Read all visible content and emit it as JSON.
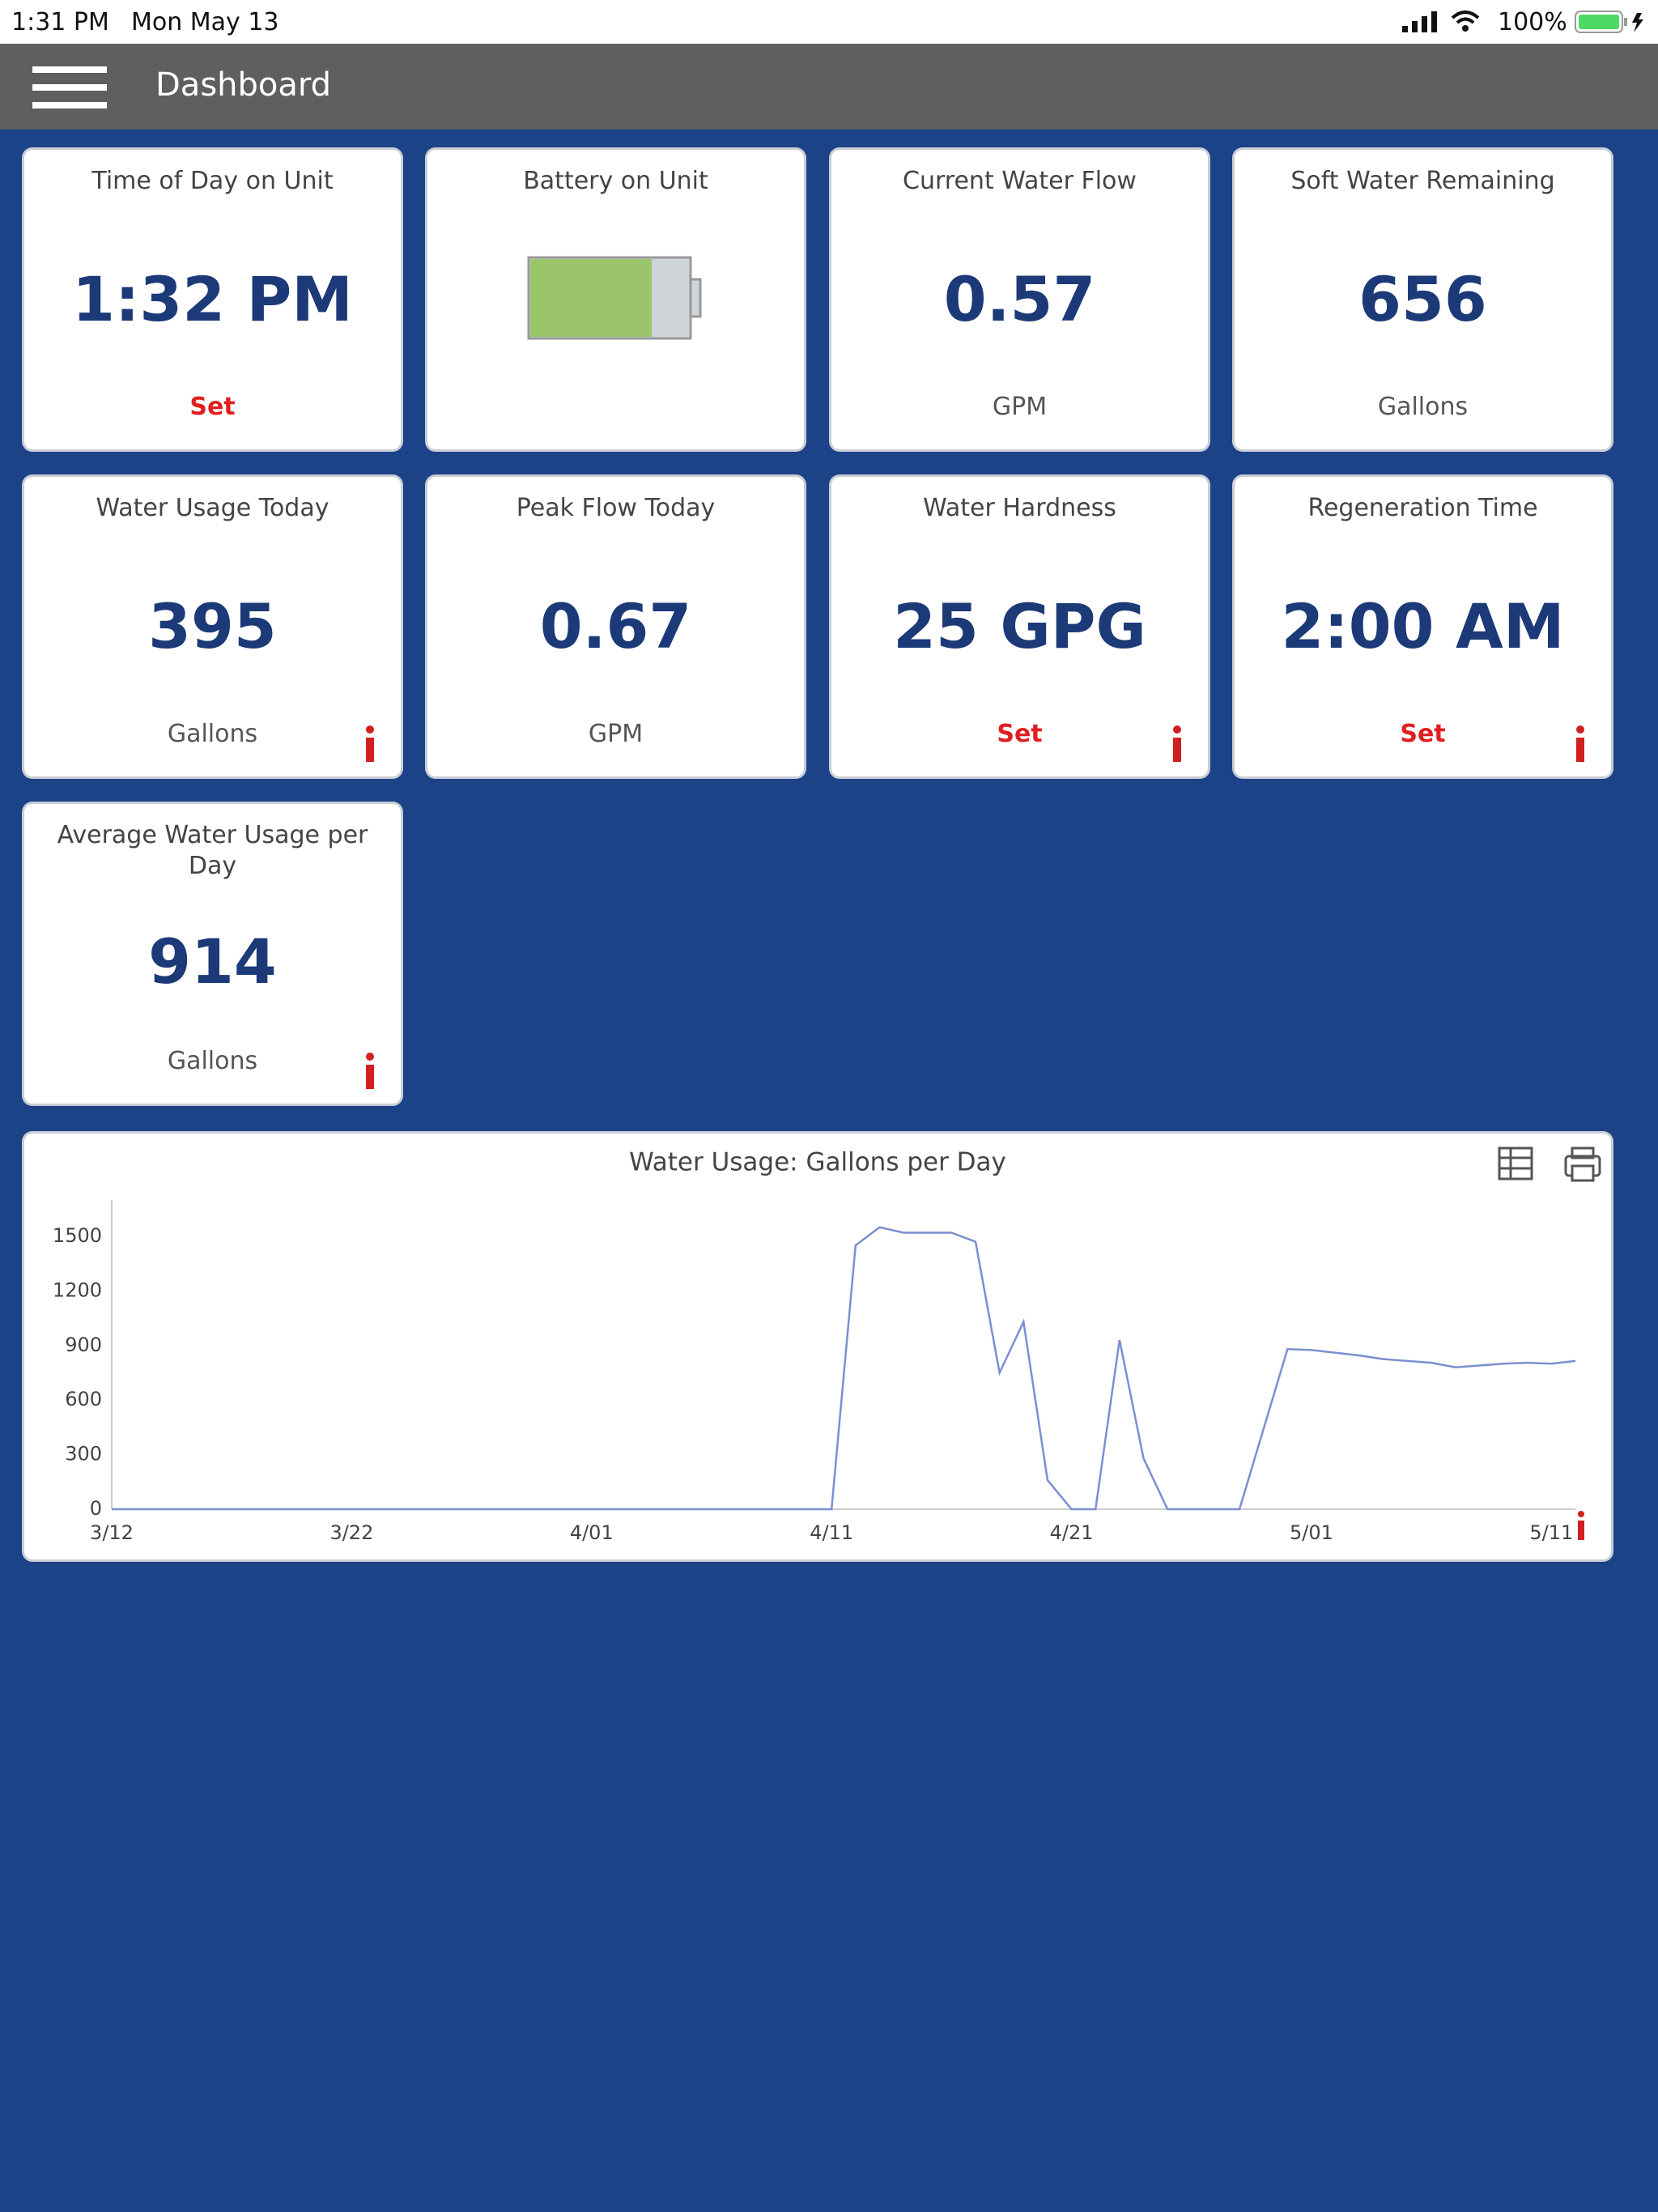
{
  "status_bar": {
    "time": "1:31 PM",
    "date": "Mon May 13",
    "battery": "100%"
  },
  "header": {
    "title": "Dashboard"
  },
  "cards": [
    {
      "title": "Time of Day on Unit",
      "value": "1:32 PM",
      "link": "Set"
    },
    {
      "title": "Battery on Unit"
    },
    {
      "title": "Current Water Flow",
      "value": 0.57,
      "unit": "GPM"
    },
    {
      "title": "Soft Water Remaining",
      "value": 656,
      "unit": "Gallons"
    },
    {
      "title": "Water Usage Today",
      "value": 395,
      "unit": "Gallons",
      "info": true
    },
    {
      "title": "Peak Flow Today",
      "value": 0.67,
      "unit": "GPM"
    },
    {
      "title": "Water Hardness",
      "value": "25 GPG",
      "link": "Set",
      "info": true
    },
    {
      "title": "Regeneration Time",
      "value": "2:00 AM",
      "link": "Set",
      "info": true
    },
    {
      "title": "Average Water Usage per Day",
      "value": 914,
      "unit": "Gallons",
      "info": true
    }
  ],
  "chart_data": {
    "type": "line",
    "title": "Water Usage: Gallons per Day",
    "color": "#7b8fd0",
    "grid": false,
    "categories": [
      "3/12",
      null,
      null,
      null,
      null,
      null,
      null,
      null,
      null,
      null,
      "3/22",
      null,
      null,
      null,
      null,
      null,
      null,
      null,
      null,
      null,
      "4/01",
      null,
      null,
      null,
      null,
      null,
      null,
      null,
      null,
      null,
      "4/11",
      null,
      null,
      null,
      null,
      null,
      null,
      null,
      null,
      null,
      "4/21",
      null,
      null,
      null,
      null,
      null,
      null,
      null,
      null,
      null,
      "5/01",
      null,
      null,
      null,
      null,
      null,
      null,
      null,
      null,
      null,
      "5/11",
      null
    ],
    "values": [
      0,
      0,
      0,
      0,
      0,
      0,
      0,
      0,
      0,
      0,
      0,
      0,
      0,
      0,
      0,
      0,
      0,
      0,
      0,
      0,
      0,
      0,
      0,
      0,
      0,
      0,
      0,
      0,
      0,
      0,
      0,
      1450,
      1550,
      1520,
      1520,
      1520,
      1470,
      750,
      1030,
      160,
      0,
      0,
      930,
      280,
      0,
      0,
      0,
      0,
      440,
      880,
      875,
      860,
      845,
      825,
      815,
      805,
      780,
      790,
      800,
      805,
      800,
      815
    ],
    "ylim": [
      0,
      1700
    ],
    "yticks": [
      0,
      300,
      600,
      900,
      1200,
      1500
    ]
  }
}
